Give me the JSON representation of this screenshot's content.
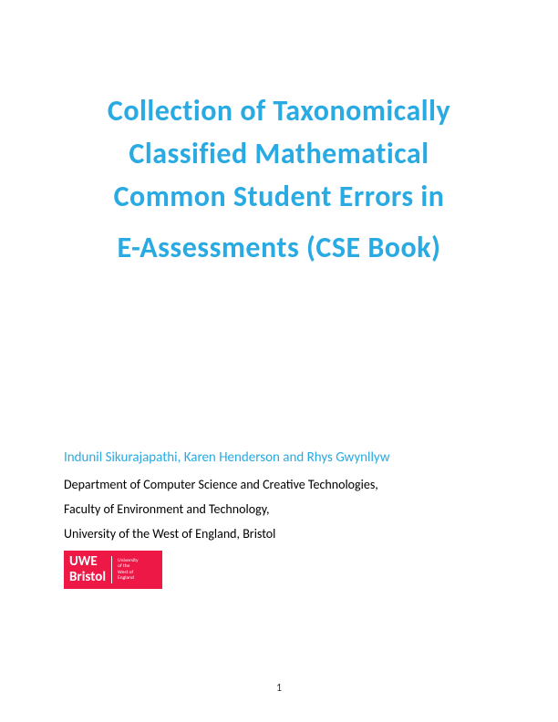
{
  "title": {
    "line1": "Collection of Taxonomically",
    "line2": "Classified Mathematical",
    "line3": "Common Student Errors in",
    "line4": "E-Assessments (CSE Book)",
    "color": "#29aae2",
    "fontsize": 32
  },
  "authors": {
    "text": "Indunil Sikurajapathi, Karen Henderson and Rhys Gwynllyw",
    "color": "#29aae2",
    "fontsize": 15
  },
  "affiliation": {
    "line1": "Department of Computer Science and Creative Technologies,",
    "line2": "Faculty of Environment and Technology,",
    "line3": "University of the West of England, Bristol",
    "color": "#000000",
    "fontsize": 14
  },
  "logo": {
    "main_line1": "UWE",
    "main_line2": "Bristol",
    "sub_line1": "University",
    "sub_line2": "of the",
    "sub_line3": "West of",
    "sub_line4": "England",
    "background_color": "#ed1846",
    "text_color": "#ffffff"
  },
  "page_number": "1"
}
